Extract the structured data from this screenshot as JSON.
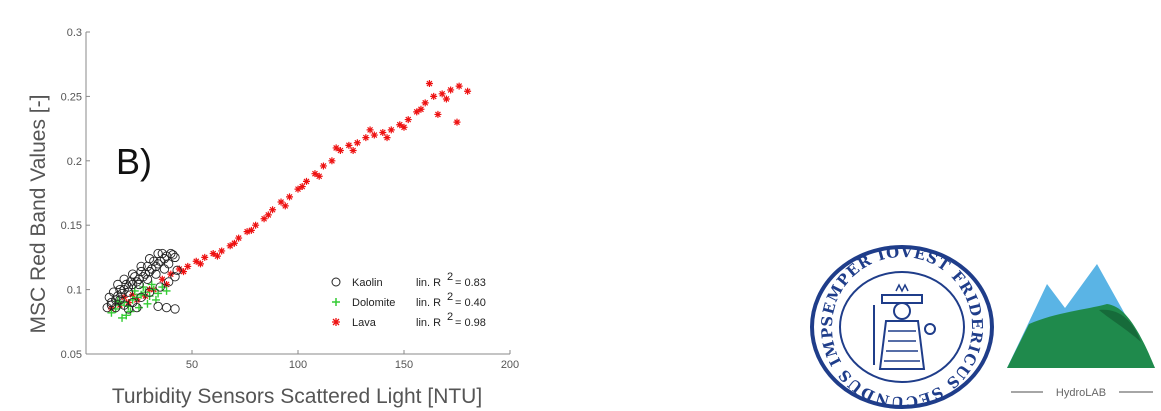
{
  "chart_data": {
    "type": "scatter",
    "title": "",
    "panel_label": "B)",
    "xlabel": "Turbidity Sensors Scattered Light [NTU]",
    "ylabel": "MSC Red Band Values [-]",
    "xlim": [
      0,
      200
    ],
    "ylim": [
      0.05,
      0.3
    ],
    "xticks": [
      50,
      100,
      150,
      200
    ],
    "yticks": [
      0.05,
      0.1,
      0.15,
      0.2,
      0.25,
      0.3
    ],
    "grid": false,
    "legend_position": "bottom-right",
    "series": [
      {
        "name": "Kaolin",
        "marker": "open-circle",
        "color": "#222222",
        "r2_label": "lin. R",
        "r2_value": "= 0.83",
        "points": [
          [
            10,
            0.086
          ],
          [
            12,
            0.088
          ],
          [
            14,
            0.092
          ],
          [
            15,
            0.095
          ],
          [
            17,
            0.097
          ],
          [
            18,
            0.1
          ],
          [
            20,
            0.102
          ],
          [
            22,
            0.104
          ],
          [
            24,
            0.106
          ],
          [
            25,
            0.108
          ],
          [
            27,
            0.11
          ],
          [
            28,
            0.112
          ],
          [
            30,
            0.114
          ],
          [
            31,
            0.116
          ],
          [
            33,
            0.118
          ],
          [
            34,
            0.12
          ],
          [
            35,
            0.122
          ],
          [
            37,
            0.124
          ],
          [
            38,
            0.126
          ],
          [
            40,
            0.128
          ],
          [
            41,
            0.127
          ],
          [
            42,
            0.125
          ],
          [
            36,
            0.128
          ],
          [
            32,
            0.122
          ],
          [
            29,
            0.118
          ],
          [
            26,
            0.114
          ],
          [
            23,
            0.11
          ],
          [
            21,
            0.106
          ],
          [
            19,
            0.104
          ],
          [
            16,
            0.1
          ],
          [
            13,
            0.098
          ],
          [
            11,
            0.094
          ],
          [
            15,
            0.104
          ],
          [
            18,
            0.108
          ],
          [
            22,
            0.112
          ],
          [
            26,
            0.118
          ],
          [
            30,
            0.124
          ],
          [
            34,
            0.128
          ],
          [
            39,
            0.12
          ],
          [
            37,
            0.116
          ],
          [
            33,
            0.112
          ],
          [
            29,
            0.108
          ],
          [
            25,
            0.104
          ],
          [
            20,
            0.098
          ],
          [
            16,
            0.092
          ],
          [
            12,
            0.09
          ],
          [
            14,
            0.086
          ],
          [
            18,
            0.088
          ],
          [
            22,
            0.09
          ],
          [
            26,
            0.094
          ],
          [
            30,
            0.098
          ],
          [
            35,
            0.102
          ],
          [
            39,
            0.106
          ],
          [
            42,
            0.11
          ],
          [
            43,
            0.115
          ],
          [
            42,
            0.085
          ],
          [
            38,
            0.086
          ],
          [
            34,
            0.087
          ],
          [
            24,
            0.086
          ],
          [
            20,
            0.085
          ]
        ]
      },
      {
        "name": "Dolomite",
        "marker": "plus",
        "color": "#33cc33",
        "r2_label": "lin. R",
        "r2_value": "= 0.40",
        "points": [
          [
            12,
            0.082
          ],
          [
            14,
            0.085
          ],
          [
            16,
            0.088
          ],
          [
            18,
            0.09
          ],
          [
            20,
            0.087
          ],
          [
            22,
            0.092
          ],
          [
            24,
            0.094
          ],
          [
            26,
            0.096
          ],
          [
            28,
            0.098
          ],
          [
            30,
            0.095
          ],
          [
            32,
            0.1
          ],
          [
            34,
            0.097
          ],
          [
            36,
            0.102
          ],
          [
            38,
            0.099
          ],
          [
            17,
            0.078
          ],
          [
            19,
            0.08
          ],
          [
            21,
            0.083
          ],
          [
            25,
            0.086
          ],
          [
            29,
            0.089
          ],
          [
            33,
            0.092
          ],
          [
            15,
            0.091
          ],
          [
            23,
            0.099
          ],
          [
            27,
            0.102
          ],
          [
            31,
            0.104
          ]
        ]
      },
      {
        "name": "Lava",
        "marker": "star",
        "color": "#ee1111",
        "r2_label": "lin. R",
        "r2_value": "= 0.98",
        "points": [
          [
            12,
            0.085
          ],
          [
            16,
            0.088
          ],
          [
            20,
            0.09
          ],
          [
            24,
            0.092
          ],
          [
            28,
            0.095
          ],
          [
            32,
            0.1
          ],
          [
            36,
            0.108
          ],
          [
            40,
            0.112
          ],
          [
            44,
            0.116
          ],
          [
            48,
            0.118
          ],
          [
            52,
            0.122
          ],
          [
            56,
            0.125
          ],
          [
            60,
            0.128
          ],
          [
            64,
            0.13
          ],
          [
            68,
            0.134
          ],
          [
            72,
            0.14
          ],
          [
            76,
            0.145
          ],
          [
            80,
            0.15
          ],
          [
            84,
            0.155
          ],
          [
            88,
            0.162
          ],
          [
            92,
            0.168
          ],
          [
            96,
            0.172
          ],
          [
            100,
            0.178
          ],
          [
            104,
            0.184
          ],
          [
            108,
            0.19
          ],
          [
            112,
            0.196
          ],
          [
            116,
            0.2
          ],
          [
            120,
            0.208
          ],
          [
            124,
            0.212
          ],
          [
            128,
            0.214
          ],
          [
            132,
            0.218
          ],
          [
            136,
            0.22
          ],
          [
            140,
            0.222
          ],
          [
            144,
            0.224
          ],
          [
            148,
            0.228
          ],
          [
            152,
            0.232
          ],
          [
            156,
            0.238
          ],
          [
            160,
            0.245
          ],
          [
            164,
            0.25
          ],
          [
            168,
            0.252
          ],
          [
            172,
            0.255
          ],
          [
            176,
            0.258
          ],
          [
            180,
            0.254
          ],
          [
            162,
            0.26
          ],
          [
            170,
            0.248
          ],
          [
            175,
            0.23
          ],
          [
            166,
            0.236
          ],
          [
            158,
            0.24
          ],
          [
            150,
            0.226
          ],
          [
            142,
            0.218
          ],
          [
            134,
            0.224
          ],
          [
            126,
            0.208
          ],
          [
            118,
            0.21
          ],
          [
            110,
            0.188
          ],
          [
            102,
            0.18
          ],
          [
            94,
            0.165
          ],
          [
            86,
            0.158
          ],
          [
            78,
            0.146
          ],
          [
            70,
            0.136
          ],
          [
            62,
            0.126
          ],
          [
            54,
            0.12
          ],
          [
            46,
            0.114
          ],
          [
            38,
            0.104
          ],
          [
            30,
            0.1
          ],
          [
            22,
            0.096
          ],
          [
            18,
            0.094
          ]
        ]
      }
    ]
  },
  "logos": {
    "seal_text": "SEMPER IOVEST FRIDERICUS SECUNDUS IMPERATOR",
    "hydrolab_text": "HydroLAB",
    "colors": {
      "seal_blue": "#1f3d8a",
      "mountain_sky": "#5ab4e5",
      "mountain_green": "#1f8a4c",
      "mountain_dark": "#166b3a"
    }
  }
}
